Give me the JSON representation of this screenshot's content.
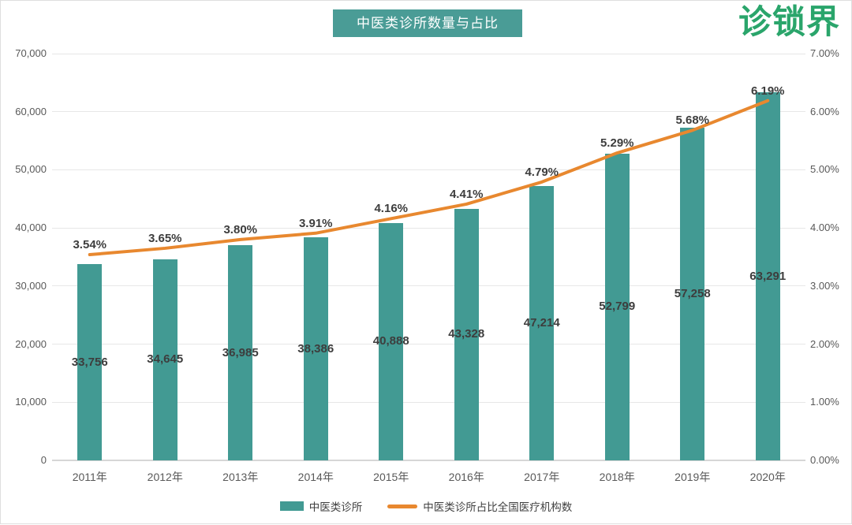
{
  "header": {
    "logo_text": "诊锁界",
    "logo_color": "#2aa56b"
  },
  "chart_data": {
    "type": "bar",
    "title": "中医类诊所数量与占比",
    "title_bg": "#4a9c96",
    "title_color": "#ffffff",
    "categories": [
      "2011年",
      "2012年",
      "2013年",
      "2014年",
      "2015年",
      "2016年",
      "2017年",
      "2018年",
      "2019年",
      "2020年"
    ],
    "series": [
      {
        "name": "中医类诊所",
        "type": "bar",
        "axis": "left",
        "color": "#429a93",
        "values": [
          33756,
          34645,
          36985,
          38386,
          40888,
          43328,
          47214,
          52799,
          57258,
          63291
        ],
        "labels": [
          "33,756",
          "34,645",
          "36,985",
          "38,386",
          "40,888",
          "43,328",
          "47,214",
          "52,799",
          "57,258",
          "63,291"
        ]
      },
      {
        "name": "中医类诊所占比全国医疗机构数",
        "type": "line",
        "axis": "right",
        "color": "#e8882f",
        "values": [
          3.54,
          3.65,
          3.8,
          3.91,
          4.16,
          4.41,
          4.79,
          5.29,
          5.68,
          6.19
        ],
        "labels": [
          "3.54%",
          "3.65%",
          "3.80%",
          "3.91%",
          "4.16%",
          "4.41%",
          "4.79%",
          "5.29%",
          "5.68%",
          "6.19%"
        ]
      }
    ],
    "left_axis": {
      "min": 0,
      "max": 70000,
      "step": 10000,
      "ticks": [
        "0",
        "10,000",
        "20,000",
        "30,000",
        "40,000",
        "50,000",
        "60,000",
        "70,000"
      ]
    },
    "right_axis": {
      "min": 0,
      "max": 7,
      "step": 1,
      "ticks": [
        "0.00%",
        "1.00%",
        "2.00%",
        "3.00%",
        "4.00%",
        "5.00%",
        "6.00%",
        "7.00%"
      ]
    },
    "grid": true,
    "legend_position": "bottom",
    "label_color": "#3d3d3d",
    "axis_text_color": "#595959",
    "grid_color": "#e7e7e7",
    "axis_line_color": "#d6d6d6"
  }
}
